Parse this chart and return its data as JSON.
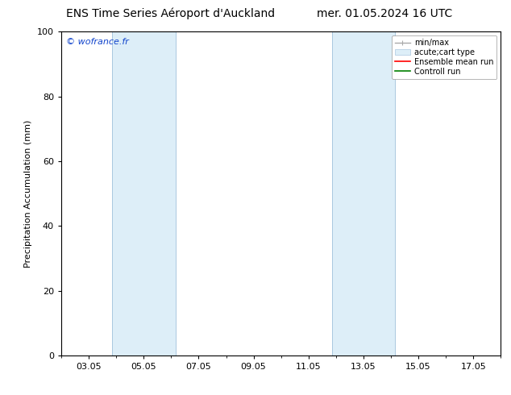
{
  "title_left": "ENS Time Series Aéroport d'Auckland",
  "title_right": "mer. 01.05.2024 16 UTC",
  "ylabel": "Precipitation Accumulation (mm)",
  "ylim": [
    0,
    100
  ],
  "yticks": [
    0,
    20,
    40,
    60,
    80,
    100
  ],
  "xtick_labels": [
    "03.05",
    "05.05",
    "07.05",
    "09.05",
    "11.05",
    "13.05",
    "15.05",
    "17.05"
  ],
  "xtick_positions": [
    0,
    2,
    4,
    6,
    8,
    10,
    12,
    14
  ],
  "x_min": -1,
  "x_max": 15,
  "shaded_bands": [
    {
      "x_start": 0.85,
      "x_end": 1.35,
      "color": "#ddeef8"
    },
    {
      "x_start": 1.35,
      "x_end": 3.15,
      "color": "#ddeef8"
    },
    {
      "x_start": 8.85,
      "x_end": 9.35,
      "color": "#ddeef8"
    },
    {
      "x_start": 9.35,
      "x_end": 11.15,
      "color": "#ddeef8"
    }
  ],
  "shaded_color": "#ddeef8",
  "watermark_text": "© wofrance.fr",
  "watermark_color": "#1144cc",
  "legend_items": [
    {
      "label": "min/max"
    },
    {
      "label": "acute;cart type"
    },
    {
      "label": "Ensemble mean run"
    },
    {
      "label": "Controll run"
    }
  ],
  "background_color": "#ffffff",
  "title_fontsize": 10,
  "axis_fontsize": 8,
  "tick_fontsize": 8
}
